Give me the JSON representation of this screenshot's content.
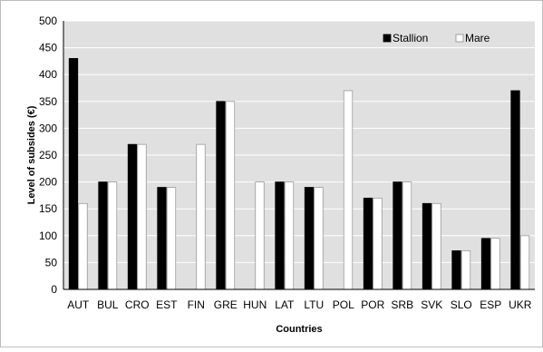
{
  "chart_data": {
    "type": "bar",
    "title": "",
    "xlabel": "Countries",
    "ylabel": "Level of subsides (€)",
    "ylim": [
      0,
      500
    ],
    "yticks": [
      0,
      50,
      100,
      150,
      200,
      250,
      300,
      350,
      400,
      450,
      500
    ],
    "grid": "horizontal",
    "legend_position": "top-right",
    "categories": [
      "AUT",
      "BUL",
      "CRO",
      "EST",
      "FIN",
      "GRE",
      "HUN",
      "LAT",
      "LTU",
      "POL",
      "POR",
      "SRB",
      "SVK",
      "SLO",
      "ESP",
      "UKR"
    ],
    "series": [
      {
        "name": "Stallion",
        "color": "#000000",
        "values": [
          430,
          200,
          270,
          190,
          0,
          350,
          0,
          200,
          190,
          0,
          170,
          200,
          160,
          72,
          95,
          370
        ]
      },
      {
        "name": "Mare",
        "color": "#ffffff",
        "values": [
          160,
          200,
          270,
          190,
          270,
          350,
          200,
          200,
          190,
          370,
          170,
          200,
          160,
          72,
          95,
          100
        ]
      }
    ],
    "plot_background": "#e0e0e0"
  }
}
